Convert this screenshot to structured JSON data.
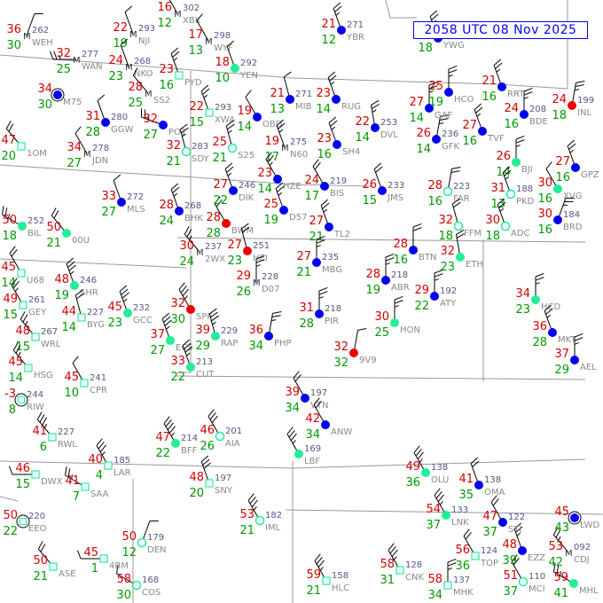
{
  "title": "2058 UTC 08 Nov 2025",
  "colors": {
    "temperature": "#d40000",
    "dewpoint": "#009900",
    "pressure": "#555588",
    "station_id": "#888888",
    "border": "#999999",
    "title": "#0000ff",
    "marker_blue": "#0000ee",
    "marker_cyan": "#22ee99",
    "marker_red": "#ee0000",
    "weather_symbol": "#cc00cc"
  },
  "stations": [
    {
      "id": "WEH",
      "temp": "36",
      "dew": "30",
      "pres": "262",
      "sky": "M",
      "wdir": 20,
      "wspd": 10
    },
    {
      "id": "NJI",
      "temp": "22",
      "dew": "19",
      "pres": "293",
      "sky": "M",
      "wdir": 340,
      "wspd": 10
    },
    {
      "id": "XBK",
      "temp": "16",
      "dew": "12",
      "pres": "302",
      "sky": "M",
      "wdir": 330,
      "wspd": 10
    },
    {
      "id": "WYF",
      "temp": "17",
      "dew": "13",
      "pres": "298",
      "sky": "M",
      "wdir": 330,
      "wspd": 10
    },
    {
      "id": "YEN",
      "temp": "18",
      "dew": "10",
      "pres": "292",
      "sky": "cyan",
      "wdir": 340,
      "wspd": 10
    },
    {
      "id": "WAN",
      "temp": "32",
      "dew": "25",
      "pres": "277",
      "sky": "M",
      "wdir": 270,
      "wspd": 15
    },
    {
      "id": "NKO",
      "temp": "24",
      "dew": "23",
      "pres": "268",
      "sky": "M",
      "wdir": 340,
      "wspd": 10
    },
    {
      "id": "SS2",
      "temp": "28",
      "dew": "25",
      "pres": "",
      "sky": "M",
      "wdir": 320,
      "wspd": 10
    },
    {
      "id": "PYD",
      "temp": "23",
      "dew": "16",
      "pres": "",
      "sky": "square",
      "wdir": 340,
      "wspd": 15
    },
    {
      "id": "M75",
      "temp": "34",
      "dew": "30",
      "pres": "",
      "sky": "ring-blue",
      "wdir": 0,
      "wspd": 0
    },
    {
      "id": "GGW",
      "temp": "31",
      "dew": "28",
      "pres": "280",
      "sky": "blue",
      "wdir": 340,
      "wspd": 10
    },
    {
      "id": "PO1",
      "temp": "32",
      "dew": "27",
      "pres": "",
      "sky": "blue",
      "wdir": 290,
      "wspd": 15
    },
    {
      "id": "XWA",
      "temp": "22",
      "dew": "15",
      "pres": "293",
      "sky": "square",
      "wdir": 340,
      "wspd": 15
    },
    {
      "id": "OBD",
      "temp": "19",
      "dew": "14",
      "pres": "",
      "sky": "blue",
      "wdir": 330,
      "wspd": 10
    },
    {
      "id": "MIB",
      "temp": "21",
      "dew": "13",
      "pres": "271",
      "sky": "blue",
      "wdir": 345,
      "wspd": 10
    },
    {
      "id": "SDY",
      "temp": "32",
      "dew": "21",
      "pres": "283",
      "sky": "cyan-open",
      "wdir": 345,
      "wspd": 15
    },
    {
      "id": "S25",
      "temp": "25",
      "dew": "21",
      "pres": "",
      "sky": "cyan-open",
      "wdir": 345,
      "wspd": 15
    },
    {
      "id": "1OM",
      "temp": "47",
      "dew": "20",
      "pres": "",
      "sky": "square",
      "wdir": 320,
      "wspd": 20
    },
    {
      "id": "JDN",
      "temp": "34",
      "dew": "27",
      "pres": "278",
      "sky": "M",
      "wdir": 330,
      "wspd": 10
    },
    {
      "id": "N60",
      "temp": "19",
      "dew": "17",
      "pres": "275",
      "sky": "M",
      "wdir": 340,
      "wspd": 15
    },
    {
      "id": "HZE",
      "temp": "23",
      "dew": "14",
      "pres": "",
      "sky": "blue",
      "wdir": 330,
      "wspd": 15
    },
    {
      "id": "YBR",
      "temp": "21",
      "dew": "12",
      "pres": "271",
      "sky": "blue",
      "wdir": 340,
      "wspd": 15
    },
    {
      "id": "YWG",
      "temp": "",
      "dew": "18",
      "pres": "",
      "sky": "blue",
      "wdir": 340,
      "wspd": 15
    },
    {
      "id": "MLS",
      "temp": "33",
      "dew": "27",
      "pres": "272",
      "sky": "blue",
      "wdir": 340,
      "wspd": 10
    },
    {
      "id": "BIL",
      "temp": "50",
      "dew": "18",
      "pres": "252",
      "sky": "cyan",
      "wdir": 300,
      "wspd": 15
    },
    {
      "id": "00U",
      "temp": "50",
      "dew": "21",
      "pres": "",
      "sky": "cyan",
      "wdir": 320,
      "wspd": 20
    },
    {
      "id": "BHK",
      "temp": "28",
      "dew": "24",
      "pres": "268",
      "sky": "blue",
      "wdir": 340,
      "wspd": 15
    },
    {
      "id": "BWM",
      "temp": "28",
      "dew": "28",
      "pres": "",
      "sky": "red",
      "wdir": 330,
      "wspd": 20
    },
    {
      "id": "HEI",
      "temp": "27",
      "dew": "23",
      "pres": "251",
      "sky": "red",
      "wdir": 345,
      "wspd": 20
    },
    {
      "id": "DIK",
      "temp": "27",
      "dew": "22",
      "pres": "246",
      "sky": "blue",
      "wdir": 340,
      "wspd": 15
    },
    {
      "id": "D57",
      "temp": "25",
      "dew": "19",
      "pres": "",
      "sky": "blue",
      "wdir": 340,
      "wspd": 15
    },
    {
      "id": "2WX",
      "temp": "30",
      "dew": "24",
      "pres": "237",
      "sky": "M",
      "wdir": 320,
      "wspd": 15
    },
    {
      "id": "D07",
      "temp": "29",
      "dew": "26",
      "pres": "228",
      "sky": "M",
      "wdir": 0,
      "wspd": 15
    },
    {
      "id": "U68",
      "temp": "45",
      "dew": "14",
      "pres": "",
      "sky": "square",
      "wdir": 330,
      "wspd": 20
    },
    {
      "id": "SHR",
      "temp": "48",
      "dew": "19",
      "pres": "246",
      "sky": "cyan",
      "wdir": 340,
      "wspd": 25
    },
    {
      "id": "GEY",
      "temp": "49",
      "dew": "15",
      "pres": "261",
      "sky": "square",
      "wdir": 330,
      "wspd": 15
    },
    {
      "id": "BYG",
      "temp": "44",
      "dew": "14",
      "pres": "227",
      "sky": "square",
      "wdir": 345,
      "wspd": 20
    },
    {
      "id": "WRL",
      "temp": "48",
      "dew": "15",
      "pres": "267",
      "sky": "square",
      "wdir": 320,
      "wspd": 15
    },
    {
      "id": "HSG",
      "temp": "45",
      "dew": "14",
      "pres": "",
      "sky": "square",
      "wdir": 320,
      "wspd": 15
    },
    {
      "id": "GCC",
      "temp": "45",
      "dew": "23",
      "pres": "232",
      "sky": "cyan",
      "wdir": 340,
      "wspd": 25
    },
    {
      "id": "SPF",
      "temp": "32",
      "dew": "30",
      "pres": "",
      "sky": "red",
      "wdir": 330,
      "wspd": 25
    },
    {
      "id": "ECS",
      "temp": "37",
      "dew": "27",
      "pres": "",
      "sky": "cyan",
      "wdir": 340,
      "wspd": 25
    },
    {
      "id": "CUT",
      "temp": "33",
      "dew": "22",
      "pres": "213",
      "sky": "cyan",
      "wdir": 340,
      "wspd": 25
    },
    {
      "id": "RAP",
      "temp": "39",
      "dew": "29",
      "pres": "229",
      "sky": "cyan",
      "wdir": 345,
      "wspd": 25
    },
    {
      "id": "PHP",
      "temp": "36",
      "dew": "34",
      "pres": "",
      "sky": "blue",
      "wdir": 10,
      "wspd": 15
    },
    {
      "id": "RIW",
      "temp": "-3",
      "dew": "8",
      "pres": "244",
      "sky": "ring-square",
      "wdir": 0,
      "wspd": 0
    },
    {
      "id": "CPR",
      "temp": "45",
      "dew": "10",
      "pres": "241",
      "sky": "square",
      "wdir": 330,
      "wspd": 10
    },
    {
      "id": "BIS",
      "temp": "24",
      "dew": "17",
      "pres": "219",
      "sky": "blue",
      "wdir": 330,
      "wspd": 20
    },
    {
      "id": "TL2",
      "temp": "27",
      "dew": "21",
      "pres": "",
      "sky": "blue",
      "wdir": 340,
      "wspd": 15
    },
    {
      "id": "MBG",
      "temp": "27",
      "dew": "21",
      "pres": "235",
      "sky": "blue",
      "wdir": 0,
      "wspd": 15
    },
    {
      "id": "DVL",
      "temp": "22",
      "dew": "14",
      "pres": "253",
      "sky": "blue",
      "wdir": 350,
      "wspd": 15
    },
    {
      "id": "SH4",
      "temp": "23",
      "dew": "16",
      "pres": "",
      "sky": "blue",
      "wdir": 340,
      "wspd": 15
    },
    {
      "id": "RUG",
      "temp": "23",
      "dew": "14",
      "pres": "",
      "sky": "blue",
      "wdir": 340,
      "wspd": 15
    },
    {
      "id": "JMS",
      "temp": "26",
      "dew": "15",
      "pres": "233",
      "sky": "blue",
      "wdir": 340,
      "wspd": 20
    },
    {
      "id": "BTN",
      "temp": "28",
      "dew": "16",
      "pres": "",
      "sky": "blue",
      "wdir": 0,
      "wspd": 20
    },
    {
      "id": "GFK",
      "temp": "26",
      "dew": "14",
      "pres": "236",
      "sky": "blue",
      "wdir": 10,
      "wspd": 15
    },
    {
      "id": "GAF",
      "temp": "27",
      "dew": "14",
      "pres": "",
      "sky": "blue",
      "wdir": 0,
      "wspd": 15
    },
    {
      "id": "HCO",
      "temp": "25",
      "dew": "19",
      "pres": "",
      "sky": "blue",
      "wdir": 0,
      "wspd": 15
    },
    {
      "id": "FAR",
      "temp": "28",
      "dew": "16",
      "pres": "223",
      "sky": "cyan-open",
      "wdir": 10,
      "wspd": 20
    },
    {
      "id": "TVF",
      "temp": "27",
      "dew": "16",
      "pres": "",
      "sky": "blue",
      "wdir": 340,
      "wspd": 15
    },
    {
      "id": "RRT",
      "temp": "21",
      "dew": "16",
      "pres": "",
      "sky": "blue",
      "wdir": 340,
      "wspd": 15
    },
    {
      "id": "BDE",
      "temp": "24",
      "dew": "16",
      "pres": "208",
      "sky": "blue",
      "wdir": 0,
      "wspd": 15
    },
    {
      "id": "INL",
      "temp": "24",
      "dew": "18",
      "pres": "199",
      "sky": "red",
      "wdir": 10,
      "wspd": 15
    },
    {
      "id": "BJI",
      "temp": "26",
      "dew": "14",
      "pres": "",
      "sky": "cyan",
      "wdir": 0,
      "wspd": 15
    },
    {
      "id": "PKD",
      "temp": "31",
      "dew": "13",
      "pres": "188",
      "sky": "cyan-open",
      "wdir": 340,
      "wspd": 15
    },
    {
      "id": "ADC",
      "temp": "30",
      "dew": "18",
      "pres": "",
      "sky": "cyan-open",
      "wdir": 340,
      "wspd": 15
    },
    {
      "id": "XVG",
      "temp": "30",
      "dew": "16",
      "pres": "",
      "sky": "cyan",
      "wdir": 330,
      "wspd": 10
    },
    {
      "id": "BRD",
      "temp": "30",
      "dew": "16",
      "pres": "184",
      "sky": "blue",
      "wdir": 20,
      "wspd": 15
    },
    {
      "id": "GPZ",
      "temp": "27",
      "dew": "16",
      "pres": "",
      "sky": "blue",
      "wdir": 340,
      "wspd": 15
    },
    {
      "id": "ETH",
      "temp": "32",
      "dew": "23",
      "pres": "",
      "sky": "cyan",
      "wdir": 350,
      "wspd": 20
    },
    {
      "id": "FFM",
      "temp": "32",
      "dew": "18",
      "pres": "",
      "sky": "cyan-open",
      "wdir": 345,
      "wspd": 20
    },
    {
      "id": "ABR",
      "temp": "28",
      "dew": "19",
      "pres": "218",
      "sky": "blue",
      "wdir": 0,
      "wspd": 15
    },
    {
      "id": "PIR",
      "temp": "31",
      "dew": "28",
      "pres": "218",
      "sky": "blue",
      "wdir": 0,
      "wspd": 15
    },
    {
      "id": "9V9",
      "temp": "32",
      "dew": "32",
      "pres": "",
      "sky": "red",
      "wdir": 10,
      "wspd": 10
    },
    {
      "id": "HON",
      "temp": "30",
      "dew": "25",
      "pres": "",
      "sky": "cyan",
      "wdir": 0,
      "wspd": 15
    },
    {
      "id": "ATY",
      "temp": "29",
      "dew": "22",
      "pres": "192",
      "sky": "blue",
      "wdir": 0,
      "wspd": 15
    },
    {
      "id": "HCD",
      "temp": "34",
      "dew": "23",
      "pres": "",
      "sky": "cyan",
      "wdir": 0,
      "wspd": 15
    },
    {
      "id": "MKT",
      "temp": "36",
      "dew": "28",
      "pres": "",
      "sky": "blue",
      "wdir": 340,
      "wspd": 15
    },
    {
      "id": "AEL",
      "temp": "37",
      "dew": "29",
      "pres": "",
      "sky": "blue",
      "wdir": 0,
      "wspd": 15
    },
    {
      "id": "VTN",
      "temp": "39",
      "dew": "34",
      "pres": "197",
      "sky": "blue",
      "wdir": 330,
      "wspd": 20
    },
    {
      "id": "ANW",
      "temp": "42",
      "dew": "34",
      "pres": "",
      "sky": "blue",
      "wdir": 330,
      "wspd": 20
    },
    {
      "id": "AIA",
      "temp": "46",
      "dew": "26",
      "pres": "201",
      "sky": "cyan-open",
      "wdir": 330,
      "wspd": 30
    },
    {
      "id": "BFF",
      "temp": "47",
      "dew": "22",
      "pres": "214",
      "sky": "cyan",
      "wdir": 330,
      "wspd": 35
    },
    {
      "id": "DEN",
      "temp": "50",
      "dew": "12",
      "pres": "179",
      "sky": "cyan-open",
      "wdir": 20,
      "wspd": 10
    },
    {
      "id": "COS",
      "temp": "58",
      "dew": "30",
      "pres": "168",
      "sky": "cyan-open",
      "wdir": 300,
      "wspd": 10
    },
    {
      "id": "LAR",
      "temp": "40",
      "dew": "4",
      "pres": "185",
      "sky": "square",
      "wdir": 330,
      "wspd": 25
    },
    {
      "id": "SNY",
      "temp": "48",
      "dew": "20",
      "pres": "197",
      "sky": "square",
      "wdir": 340,
      "wspd": 30
    },
    {
      "id": "IML",
      "temp": "53",
      "dew": "21",
      "pres": "182",
      "sky": "cyan-open",
      "wdir": 330,
      "wspd": 25
    },
    {
      "id": "LBF",
      "temp": "",
      "dew": "",
      "pres": "169",
      "sky": "cyan",
      "wdir": 330,
      "wspd": 25
    },
    {
      "id": "OLU",
      "temp": "49",
      "dew": "36",
      "pres": "138",
      "sky": "cyan",
      "wdir": 330,
      "wspd": 25
    },
    {
      "id": "OMA",
      "temp": "41",
      "dew": "35",
      "pres": "138",
      "sky": "blue",
      "wdir": 340,
      "wspd": 20
    },
    {
      "id": "LNK",
      "temp": "54",
      "dew": "37",
      "pres": "133",
      "sky": "cyan",
      "wdir": 330,
      "wspd": 25
    },
    {
      "id": "MCI",
      "temp": "51",
      "dew": "37",
      "pres": "110",
      "sky": "cyan-open",
      "wdir": 330,
      "wspd": 20
    },
    {
      "id": "MHK",
      "temp": "58",
      "dew": "34",
      "pres": "137",
      "sky": "square",
      "wdir": 0,
      "wspd": 15
    },
    {
      "id": "TOP",
      "temp": "56",
      "dew": "36",
      "pres": "124",
      "sky": "square",
      "wdir": 330,
      "wspd": 20
    },
    {
      "id": "CNK",
      "temp": "58",
      "dew": "31",
      "pres": "128",
      "sky": "square",
      "wdir": 330,
      "wspd": 25
    },
    {
      "id": "HLC",
      "temp": "59",
      "dew": "21",
      "pres": "158",
      "sky": "square",
      "wdir": 330,
      "wspd": 25
    },
    {
      "id": "EEO",
      "temp": "50",
      "dew": "22",
      "pres": "220",
      "sky": "ring-square",
      "wdir": 0,
      "wspd": 0
    },
    {
      "id": "DWX",
      "temp": "46",
      "dew": "15",
      "pres": "",
      "sky": "square",
      "wdir": 270,
      "wspd": 10
    },
    {
      "id": "RWL",
      "temp": "41",
      "dew": "6",
      "pres": "227",
      "sky": "square",
      "wdir": 320,
      "wspd": 25
    },
    {
      "id": "SAA",
      "temp": "41",
      "dew": "7",
      "pres": "",
      "sky": "square",
      "wdir": 300,
      "wspd": 15
    },
    {
      "id": "ASE",
      "temp": "50",
      "dew": "21",
      "pres": "",
      "sky": "square",
      "wdir": 320,
      "wspd": 20
    },
    {
      "id": "4BM",
      "temp": "45",
      "dew": "1",
      "pres": "",
      "sky": "square",
      "wdir": 270,
      "wspd": 10
    },
    {
      "id": "MHL",
      "temp": "59",
      "dew": "41",
      "pres": "",
      "sky": "cyan",
      "wdir": 300,
      "wspd": 15
    },
    {
      "id": "CDJ",
      "temp": "53",
      "dew": "42",
      "pres": "092",
      "sky": "M",
      "wdir": 320,
      "wspd": 15
    },
    {
      "id": "EZZ",
      "temp": "48",
      "dew": "39",
      "pres": "",
      "sky": "blue",
      "wdir": 340,
      "wspd": 15
    },
    {
      "id": "STJ",
      "temp": "47",
      "dew": "37",
      "pres": "122",
      "sky": "blue",
      "wdir": 330,
      "wspd": 20
    },
    {
      "id": "LWD",
      "temp": "45",
      "dew": "43",
      "pres": "",
      "sky": "ring-blue",
      "wdir": 0,
      "wspd": 0
    }
  ]
}
